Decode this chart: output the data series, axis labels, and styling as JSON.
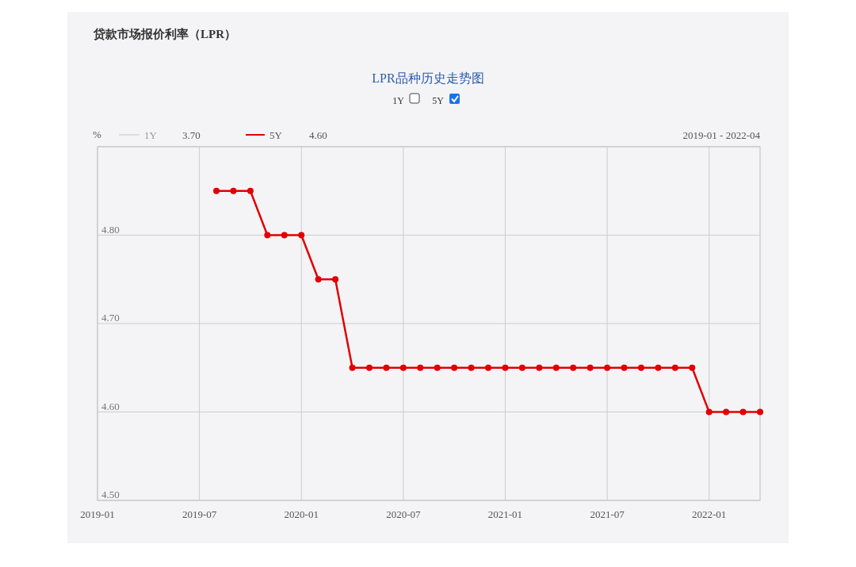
{
  "chart_data": {
    "type": "line",
    "title": "贷款市场报价利率（LPR）",
    "subtitle": "LPR品种历史走势图",
    "ylabel": "%",
    "x": [
      "2019-08",
      "2019-09",
      "2019-10",
      "2019-11",
      "2019-12",
      "2020-01",
      "2020-02",
      "2020-03",
      "2020-04",
      "2020-05",
      "2020-06",
      "2020-07",
      "2020-08",
      "2020-09",
      "2020-10",
      "2020-11",
      "2020-12",
      "2021-01",
      "2021-02",
      "2021-03",
      "2021-04",
      "2021-05",
      "2021-06",
      "2021-07",
      "2021-08",
      "2021-09",
      "2021-10",
      "2021-11",
      "2021-12",
      "2022-01",
      "2022-02",
      "2022-03",
      "2022-04"
    ],
    "series": [
      {
        "name": "5Y",
        "color": "#e00000",
        "values": [
          4.85,
          4.85,
          4.85,
          4.8,
          4.8,
          4.8,
          4.75,
          4.75,
          4.65,
          4.65,
          4.65,
          4.65,
          4.65,
          4.65,
          4.65,
          4.65,
          4.65,
          4.65,
          4.65,
          4.65,
          4.65,
          4.65,
          4.65,
          4.65,
          4.65,
          4.65,
          4.65,
          4.65,
          4.65,
          4.6,
          4.6,
          4.6,
          4.6
        ]
      }
    ],
    "xlim": [
      "2019-01",
      "2022-04"
    ],
    "xticks": [
      "2019-01",
      "2019-07",
      "2020-01",
      "2020-07",
      "2021-01",
      "2021-07",
      "2022-01"
    ],
    "ylim": [
      4.5,
      4.9
    ],
    "yticks": [
      {
        "value": 4.5,
        "label": "4.50"
      },
      {
        "value": 4.6,
        "label": "4.60"
      },
      {
        "value": 4.7,
        "label": "4.70"
      },
      {
        "value": 4.8,
        "label": "4.80"
      },
      {
        "value": 4.9,
        "label": null
      }
    ],
    "grid": true,
    "marker": "circle",
    "line_style": "solid",
    "legend": "top left",
    "annotations": [
      "1Y",
      "3.70",
      "4.60",
      "2019-01 - 2022-04",
      "1Y",
      "5Y"
    ]
  }
}
